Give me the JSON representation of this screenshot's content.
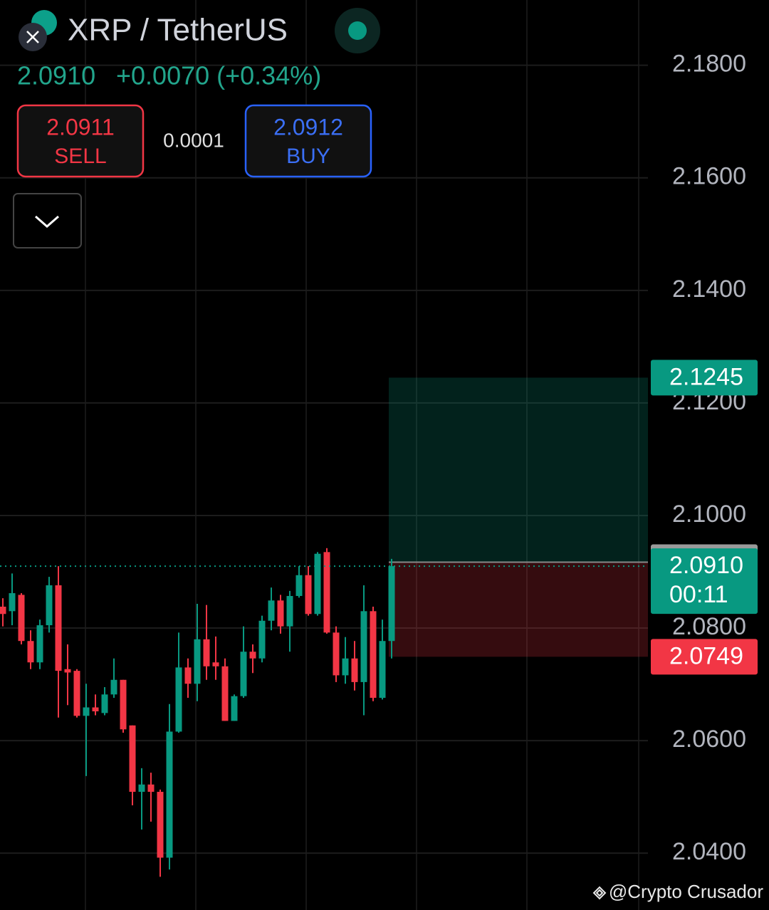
{
  "header": {
    "symbol": "XRP / TetherUS",
    "price": "2.0910",
    "change": "+0.0070 (+0.34%)"
  },
  "order": {
    "sell_price": "2.0911",
    "sell_label": "SELL",
    "spread": "0.0001",
    "buy_price": "2.0912",
    "buy_label": "BUY"
  },
  "watermark": "@Crypto Crusador",
  "chart_data": {
    "type": "candlestick",
    "open": [
      2.0838,
      2.083,
      2.0859,
      2.0777,
      2.0739,
      2.0805,
      2.0876,
      2.0727,
      2.0724,
      2.0644,
      2.0659,
      2.0649,
      2.0682,
      2.0708,
      2.0627,
      2.0509,
      2.0522,
      2.0509,
      2.0392,
      2.0616,
      2.073,
      2.0701,
      2.078,
      2.0739,
      2.0732,
      2.0635,
      2.0679,
      2.0758,
      2.0746,
      2.0813,
      2.0849,
      2.0803,
      2.0857,
      2.0894,
      2.0825,
      2.0935,
      2.0792,
      2.0716,
      2.0746,
      2.0704,
      2.083,
      2.0676,
      2.0777
    ],
    "high": [
      2.0853,
      2.0897,
      2.0862,
      2.0796,
      2.0815,
      2.0891,
      2.091,
      2.0771,
      2.0727,
      2.0701,
      2.0682,
      2.0695,
      2.0746,
      2.0708,
      2.0627,
      2.0551,
      2.0543,
      2.0513,
      2.0665,
      2.0792,
      2.0746,
      2.0843,
      2.0841,
      2.0785,
      2.0746,
      2.0682,
      2.0803,
      2.0771,
      2.0822,
      2.0872,
      2.0859,
      2.0866,
      2.091,
      2.091,
      2.0935,
      2.0942,
      2.0803,
      2.0784,
      2.0777,
      2.0876,
      2.0838,
      2.0815,
      2.0923
    ],
    "low": [
      2.0803,
      2.0805,
      2.0771,
      2.0727,
      2.0727,
      2.0792,
      2.0641,
      2.0663,
      2.0641,
      2.0537,
      2.0645,
      2.0645,
      2.0676,
      2.0614,
      2.0485,
      2.0442,
      2.0456,
      2.0358,
      2.0371,
      2.0614,
      2.0676,
      2.067,
      2.0708,
      2.0708,
      2.0635,
      2.0635,
      2.0676,
      2.072,
      2.0739,
      2.0796,
      2.079,
      2.0758,
      2.0854,
      2.0822,
      2.0822,
      2.079,
      2.0704,
      2.0701,
      2.0689,
      2.0645,
      2.067,
      2.0673,
      2.0746
    ],
    "close": [
      2.0825,
      2.0862,
      2.0777,
      2.0739,
      2.0805,
      2.0876,
      2.0724,
      2.0721,
      2.0644,
      2.0659,
      2.0652,
      2.0682,
      2.0708,
      2.062,
      2.0509,
      2.0522,
      2.0509,
      2.0392,
      2.0616,
      2.073,
      2.0701,
      2.078,
      2.0732,
      2.0732,
      2.0635,
      2.0679,
      2.0758,
      2.0746,
      2.0813,
      2.0849,
      2.0803,
      2.0857,
      2.0894,
      2.0825,
      2.0932,
      2.0792,
      2.0716,
      2.0746,
      2.0704,
      2.083,
      2.0676,
      2.0777,
      2.091
    ],
    "ylim": [
      2.0299,
      2.1916
    ],
    "yticks": [
      {
        "value": 2.18,
        "label": "2.1800"
      },
      {
        "value": 2.16,
        "label": "2.1600"
      },
      {
        "value": 2.14,
        "label": "2.1400"
      },
      {
        "value": 2.12,
        "label": "2.1200"
      },
      {
        "value": 2.1,
        "label": "2.1000"
      },
      {
        "value": 2.08,
        "label": "2.0800"
      },
      {
        "value": 2.06,
        "label": "2.0600"
      },
      {
        "value": 2.04,
        "label": "2.0400"
      }
    ],
    "grid": true,
    "colors": {
      "up": "#089981",
      "down": "#f23645"
    },
    "position": {
      "target": 2.1245,
      "entry": 2.0917,
      "stop": 2.0749
    },
    "last_price": {
      "value": 2.091,
      "label": "2.0910",
      "countdown": "00:11"
    }
  }
}
